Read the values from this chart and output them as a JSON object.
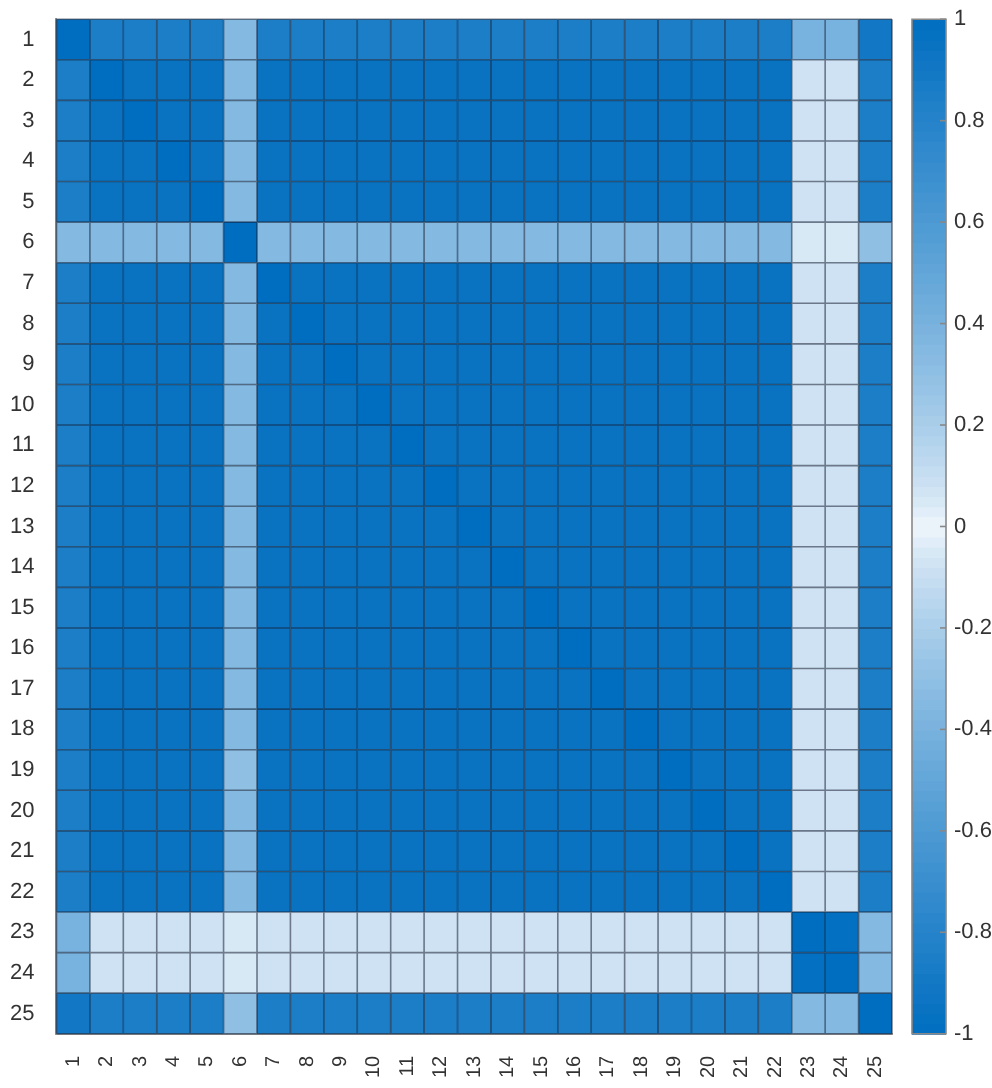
{
  "chart_data": {
    "type": "heatmap",
    "categories": [
      "1",
      "2",
      "3",
      "4",
      "5",
      "6",
      "7",
      "8",
      "9",
      "10",
      "11",
      "12",
      "13",
      "14",
      "15",
      "16",
      "17",
      "18",
      "19",
      "20",
      "21",
      "22",
      "23",
      "24",
      "25"
    ],
    "y_categories": [
      "1",
      "2",
      "3",
      "4",
      "5",
      "6",
      "7",
      "8",
      "9",
      "10",
      "11",
      "12",
      "13",
      "14",
      "15",
      "16",
      "17",
      "18",
      "19",
      "20",
      "21",
      "22",
      "23",
      "24",
      "25"
    ],
    "cells": [
      [
        1,
        0.85,
        0.85,
        0.85,
        0.85,
        0.35,
        0.85,
        0.85,
        0.85,
        0.85,
        0.85,
        0.85,
        0.85,
        0.85,
        0.85,
        0.85,
        0.85,
        0.85,
        0.85,
        0.85,
        0.85,
        0.85,
        0.4,
        0.4,
        0.9
      ],
      [
        0.85,
        1,
        0.95,
        0.95,
        0.95,
        0.35,
        0.95,
        0.95,
        0.95,
        0.95,
        0.95,
        0.95,
        0.95,
        0.95,
        0.95,
        0.95,
        0.95,
        0.95,
        0.95,
        0.95,
        0.95,
        0.95,
        0.08,
        0.08,
        0.85
      ],
      [
        0.85,
        0.95,
        1,
        0.95,
        0.95,
        0.35,
        0.95,
        0.95,
        0.95,
        0.95,
        0.95,
        0.95,
        0.95,
        0.95,
        0.95,
        0.95,
        0.95,
        0.95,
        0.95,
        0.95,
        0.95,
        0.95,
        0.08,
        0.08,
        0.85
      ],
      [
        0.85,
        0.95,
        0.95,
        1,
        0.95,
        0.35,
        0.95,
        0.95,
        0.95,
        0.95,
        0.95,
        0.95,
        0.95,
        0.95,
        0.95,
        0.95,
        0.95,
        0.95,
        0.95,
        0.95,
        0.95,
        0.95,
        0.08,
        0.08,
        0.85
      ],
      [
        0.85,
        0.95,
        0.95,
        0.95,
        1,
        0.35,
        0.95,
        0.95,
        0.95,
        0.95,
        0.95,
        0.95,
        0.95,
        0.95,
        0.95,
        0.95,
        0.95,
        0.95,
        0.95,
        0.95,
        0.95,
        0.95,
        0.08,
        0.08,
        0.85
      ],
      [
        0.35,
        0.35,
        0.35,
        0.35,
        0.35,
        1,
        0.35,
        0.35,
        0.35,
        0.35,
        0.35,
        0.35,
        0.35,
        0.35,
        0.35,
        0.35,
        0.35,
        0.35,
        0.35,
        0.35,
        0.35,
        0.35,
        0.05,
        0.05,
        0.3
      ],
      [
        0.85,
        0.95,
        0.95,
        0.95,
        0.95,
        0.35,
        1,
        0.95,
        0.95,
        0.95,
        0.95,
        0.95,
        0.95,
        0.95,
        0.95,
        0.95,
        0.95,
        0.95,
        0.95,
        0.95,
        0.95,
        0.95,
        0.08,
        0.08,
        0.85
      ],
      [
        0.85,
        0.95,
        0.95,
        0.95,
        0.95,
        0.35,
        0.95,
        1,
        0.95,
        0.95,
        0.95,
        0.95,
        0.95,
        0.95,
        0.95,
        0.95,
        0.95,
        0.95,
        0.95,
        0.95,
        0.95,
        0.95,
        0.08,
        0.08,
        0.85
      ],
      [
        0.85,
        0.95,
        0.95,
        0.95,
        0.95,
        0.35,
        0.95,
        0.95,
        1,
        0.95,
        0.95,
        0.95,
        0.95,
        0.95,
        0.95,
        0.95,
        0.95,
        0.95,
        0.95,
        0.95,
        0.95,
        0.95,
        0.08,
        0.08,
        0.85
      ],
      [
        0.85,
        0.95,
        0.95,
        0.95,
        0.95,
        0.35,
        0.95,
        0.95,
        0.95,
        1,
        0.95,
        0.95,
        0.95,
        0.95,
        0.95,
        0.95,
        0.95,
        0.95,
        0.95,
        0.95,
        0.95,
        0.95,
        0.08,
        0.08,
        0.85
      ],
      [
        0.85,
        0.95,
        0.95,
        0.95,
        0.95,
        0.35,
        0.95,
        0.95,
        0.95,
        0.95,
        1,
        0.95,
        0.95,
        0.95,
        0.95,
        0.95,
        0.95,
        0.95,
        0.95,
        0.95,
        0.95,
        0.95,
        0.08,
        0.08,
        0.85
      ],
      [
        0.85,
        0.95,
        0.95,
        0.95,
        0.95,
        0.35,
        0.95,
        0.95,
        0.95,
        0.95,
        0.95,
        1,
        0.95,
        0.95,
        0.95,
        0.95,
        0.95,
        0.95,
        0.95,
        0.95,
        0.95,
        0.95,
        0.08,
        0.08,
        0.85
      ],
      [
        0.85,
        0.95,
        0.95,
        0.95,
        0.95,
        0.35,
        0.95,
        0.95,
        0.95,
        0.95,
        0.95,
        0.95,
        1,
        0.95,
        0.95,
        0.95,
        0.95,
        0.95,
        0.95,
        0.95,
        0.95,
        0.95,
        0.08,
        0.08,
        0.85
      ],
      [
        0.85,
        0.95,
        0.95,
        0.95,
        0.95,
        0.35,
        0.95,
        0.95,
        0.95,
        0.95,
        0.95,
        0.95,
        0.95,
        1,
        0.95,
        0.95,
        0.95,
        0.95,
        0.95,
        0.95,
        0.95,
        0.95,
        0.08,
        0.08,
        0.85
      ],
      [
        0.85,
        0.95,
        0.95,
        0.95,
        0.95,
        0.35,
        0.95,
        0.95,
        0.95,
        0.95,
        0.95,
        0.95,
        0.95,
        0.95,
        1,
        0.95,
        0.95,
        0.95,
        0.95,
        0.95,
        0.95,
        0.95,
        0.08,
        0.08,
        0.85
      ],
      [
        0.85,
        0.95,
        0.95,
        0.95,
        0.95,
        0.35,
        0.95,
        0.95,
        0.95,
        0.95,
        0.95,
        0.95,
        0.95,
        0.95,
        0.95,
        1,
        0.95,
        0.95,
        0.95,
        0.95,
        0.95,
        0.95,
        0.08,
        0.08,
        0.85
      ],
      [
        0.85,
        0.95,
        0.95,
        0.95,
        0.95,
        0.35,
        0.95,
        0.95,
        0.95,
        0.95,
        0.95,
        0.95,
        0.95,
        0.95,
        0.95,
        0.95,
        1,
        0.95,
        0.95,
        0.95,
        0.95,
        0.95,
        0.08,
        0.08,
        0.85
      ],
      [
        0.85,
        0.95,
        0.95,
        0.95,
        0.95,
        0.35,
        0.95,
        0.95,
        0.95,
        0.95,
        0.95,
        0.95,
        0.95,
        0.95,
        0.95,
        0.95,
        0.95,
        1,
        0.95,
        0.95,
        0.95,
        0.95,
        0.08,
        0.08,
        0.85
      ],
      [
        0.85,
        0.95,
        0.95,
        0.95,
        0.95,
        0.3,
        0.95,
        0.95,
        0.95,
        0.95,
        0.95,
        0.95,
        0.95,
        0.95,
        0.95,
        0.95,
        0.95,
        0.95,
        1,
        0.95,
        0.95,
        0.95,
        0.08,
        0.08,
        0.85
      ],
      [
        0.85,
        0.95,
        0.95,
        0.95,
        0.95,
        0.35,
        0.95,
        0.95,
        0.95,
        0.95,
        0.95,
        0.95,
        0.95,
        0.95,
        0.95,
        0.95,
        0.95,
        0.95,
        0.95,
        1,
        0.95,
        0.95,
        0.08,
        0.08,
        0.85
      ],
      [
        0.85,
        0.95,
        0.95,
        0.95,
        0.95,
        0.35,
        0.95,
        0.95,
        0.95,
        0.95,
        0.95,
        0.95,
        0.95,
        0.95,
        0.95,
        0.95,
        0.95,
        0.95,
        0.95,
        0.95,
        1,
        0.95,
        0.08,
        0.08,
        0.85
      ],
      [
        0.85,
        0.95,
        0.95,
        0.95,
        0.95,
        0.35,
        0.95,
        0.95,
        0.95,
        0.95,
        0.95,
        0.95,
        0.95,
        0.95,
        0.95,
        0.95,
        0.95,
        0.95,
        0.95,
        0.95,
        0.95,
        1,
        0.08,
        0.08,
        0.85
      ],
      [
        0.4,
        0.08,
        0.08,
        0.08,
        0.08,
        0.05,
        0.08,
        0.08,
        0.08,
        0.08,
        0.08,
        0.08,
        0.08,
        0.08,
        0.08,
        0.08,
        0.08,
        0.08,
        0.08,
        0.08,
        0.08,
        0.08,
        1,
        0.98,
        0.35
      ],
      [
        0.4,
        0.08,
        0.08,
        0.08,
        0.08,
        0.05,
        0.08,
        0.08,
        0.08,
        0.08,
        0.08,
        0.08,
        0.08,
        0.08,
        0.08,
        0.08,
        0.08,
        0.08,
        0.08,
        0.08,
        0.08,
        0.08,
        0.98,
        1,
        0.35
      ],
      [
        0.9,
        0.85,
        0.85,
        0.85,
        0.85,
        0.3,
        0.85,
        0.85,
        0.85,
        0.85,
        0.85,
        0.85,
        0.85,
        0.85,
        0.85,
        0.85,
        0.85,
        0.85,
        0.85,
        0.85,
        0.85,
        0.85,
        0.35,
        0.35,
        1
      ]
    ],
    "grid": true,
    "clim": [
      -1,
      1
    ],
    "cticks": [
      -1,
      -0.8,
      -0.6,
      -0.4,
      -0.2,
      0,
      0.2,
      0.4,
      0.6,
      0.8,
      1
    ]
  }
}
